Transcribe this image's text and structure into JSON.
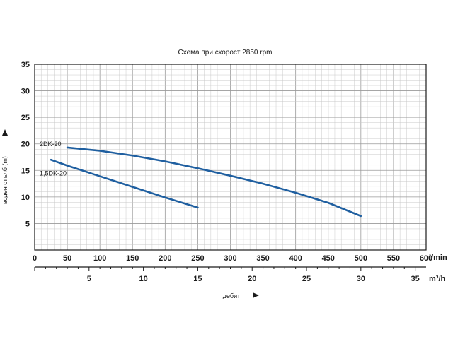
{
  "chart_data": {
    "type": "line",
    "title": "Схема при скорост 2850 rpm",
    "ylabel": "воден стълб (m)",
    "xlabel": "дебит",
    "x_unit_top": "l/min",
    "x_unit_bottom": "m³/h",
    "xlim": [
      0,
      600
    ],
    "ylim": [
      0,
      35
    ],
    "yticks": [
      "5",
      "10",
      "15",
      "20",
      "25",
      "30",
      "35"
    ],
    "xticks_top": [
      "0",
      "50",
      "100",
      "150",
      "200",
      "250",
      "300",
      "350",
      "400",
      "450",
      "500",
      "550",
      "600"
    ],
    "xticks_bottom": [
      "5",
      "10",
      "15",
      "20",
      "25",
      "30",
      "35"
    ],
    "grid": true,
    "series": [
      {
        "name": "2DK-20",
        "color": "#1f5fa0",
        "x": [
          50,
          100,
          150,
          200,
          250,
          300,
          350,
          400,
          450,
          500
        ],
        "y": [
          19.3,
          18.7,
          17.8,
          16.7,
          15.4,
          14.0,
          12.5,
          10.8,
          8.9,
          6.4
        ]
      },
      {
        "name": "1,5DK-20",
        "color": "#1f5fa0",
        "x": [
          25,
          50,
          100,
          150,
          200,
          250
        ],
        "y": [
          17.0,
          15.9,
          13.9,
          11.9,
          9.9,
          8.0
        ]
      }
    ]
  }
}
